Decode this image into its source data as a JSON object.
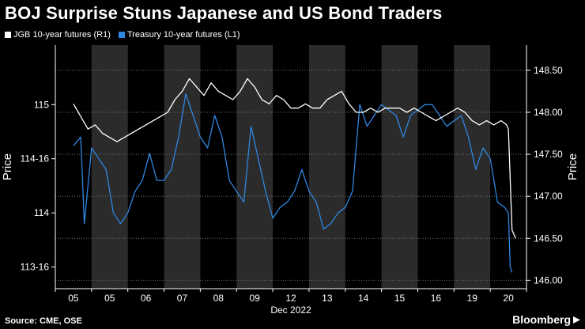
{
  "title": "BOJ Surprise Stuns Japanese and US Bond Traders",
  "footer": {
    "source": "Source: CME, OSE",
    "brand": "Bloomberg"
  },
  "colors": {
    "background": "#000000",
    "jgb_series": "#ffffff",
    "treasury_series": "#2e87e0",
    "session_shade": "#2b2b2b",
    "gridline": "#707070"
  },
  "chart_data": {
    "type": "line",
    "title": "BOJ Surprise Stuns Japanese and US Bond Traders",
    "xlabel": "Dec 2022",
    "x_tick_labels": [
      "05",
      "05",
      "06",
      "07",
      "08",
      "09",
      "12",
      "13",
      "14",
      "15",
      "16",
      "19",
      "20"
    ],
    "shaded_sessions": [
      1,
      3,
      5,
      7,
      9,
      11
    ],
    "legend_position": "top-left",
    "grid": true,
    "left_axis": {
      "label": "Price",
      "ticks": [
        "113-16",
        "114",
        "114-16",
        "115"
      ],
      "tick_values": [
        113.5,
        114.0,
        114.5,
        115.0
      ],
      "range": [
        113.3,
        115.55
      ]
    },
    "right_axis": {
      "label": "Price",
      "ticks": [
        "146.00",
        "146.50",
        "147.00",
        "147.50",
        "148.00",
        "148.50"
      ],
      "tick_values": [
        146.0,
        146.5,
        147.0,
        147.5,
        148.0,
        148.5
      ],
      "range": [
        145.9,
        148.8
      ]
    },
    "series": [
      {
        "name": "JGB 10-year futures (R1)",
        "axis": "right",
        "color": "#ffffff",
        "x": [
          0.0,
          0.2,
          0.4,
          0.6,
          0.8,
          1.0,
          1.2,
          1.4,
          1.6,
          1.8,
          2.0,
          2.2,
          2.4,
          2.6,
          2.8,
          3.0,
          3.2,
          3.4,
          3.6,
          3.8,
          4.0,
          4.2,
          4.4,
          4.6,
          4.8,
          5.0,
          5.2,
          5.4,
          5.6,
          5.8,
          6.0,
          6.2,
          6.4,
          6.6,
          6.8,
          7.0,
          7.2,
          7.4,
          7.6,
          7.8,
          8.0,
          8.2,
          8.4,
          8.6,
          8.8,
          9.0,
          9.2,
          9.4,
          9.6,
          9.8,
          10.0,
          10.2,
          10.4,
          10.6,
          10.8,
          11.0,
          11.2,
          11.4,
          11.6,
          11.8,
          11.95,
          12.0,
          12.1,
          12.2
        ],
        "values": [
          148.1,
          147.95,
          147.8,
          147.85,
          147.75,
          147.7,
          147.65,
          147.7,
          147.75,
          147.8,
          147.85,
          147.9,
          147.95,
          148.0,
          148.15,
          148.25,
          148.4,
          148.3,
          148.2,
          148.35,
          148.25,
          148.2,
          148.15,
          148.25,
          148.4,
          148.3,
          148.15,
          148.1,
          148.2,
          148.15,
          148.05,
          148.05,
          148.1,
          148.05,
          148.05,
          148.15,
          148.2,
          148.25,
          148.1,
          148.0,
          148.0,
          148.05,
          148.0,
          148.05,
          148.05,
          148.05,
          148.0,
          148.05,
          148.0,
          147.95,
          147.9,
          147.95,
          148.0,
          148.05,
          148.0,
          147.9,
          147.85,
          147.9,
          147.85,
          147.9,
          147.85,
          147.8,
          146.6,
          146.5
        ]
      },
      {
        "name": "Treasury 10-year futures (L1)",
        "axis": "left",
        "color": "#2e87e0",
        "x": [
          0.0,
          0.2,
          0.3,
          0.5,
          0.7,
          0.9,
          1.1,
          1.3,
          1.5,
          1.7,
          1.9,
          2.1,
          2.3,
          2.5,
          2.7,
          2.9,
          3.1,
          3.3,
          3.5,
          3.7,
          3.9,
          4.1,
          4.3,
          4.5,
          4.7,
          4.9,
          5.1,
          5.3,
          5.5,
          5.7,
          5.9,
          6.1,
          6.3,
          6.5,
          6.7,
          6.9,
          7.1,
          7.3,
          7.5,
          7.7,
          7.9,
          8.1,
          8.3,
          8.5,
          8.7,
          8.9,
          9.1,
          9.3,
          9.5,
          9.7,
          9.9,
          10.1,
          10.3,
          10.5,
          10.7,
          10.9,
          11.1,
          11.3,
          11.5,
          11.7,
          11.9,
          12.0,
          12.05,
          12.1
        ],
        "values": [
          114.62,
          114.7,
          113.9,
          114.6,
          114.5,
          114.4,
          114.0,
          113.9,
          114.0,
          114.2,
          114.3,
          114.55,
          114.3,
          114.3,
          114.4,
          114.7,
          115.1,
          114.9,
          114.7,
          114.6,
          114.9,
          114.7,
          114.3,
          114.2,
          114.1,
          114.8,
          114.5,
          114.2,
          113.95,
          114.05,
          114.1,
          114.2,
          114.4,
          114.2,
          114.1,
          113.85,
          113.9,
          114.0,
          114.05,
          114.2,
          115.0,
          114.8,
          114.9,
          115.0,
          114.95,
          114.9,
          114.7,
          114.9,
          114.95,
          115.0,
          115.0,
          114.9,
          114.8,
          114.85,
          114.9,
          114.7,
          114.4,
          114.6,
          114.5,
          114.1,
          114.05,
          114.0,
          113.5,
          113.45
        ]
      }
    ]
  }
}
